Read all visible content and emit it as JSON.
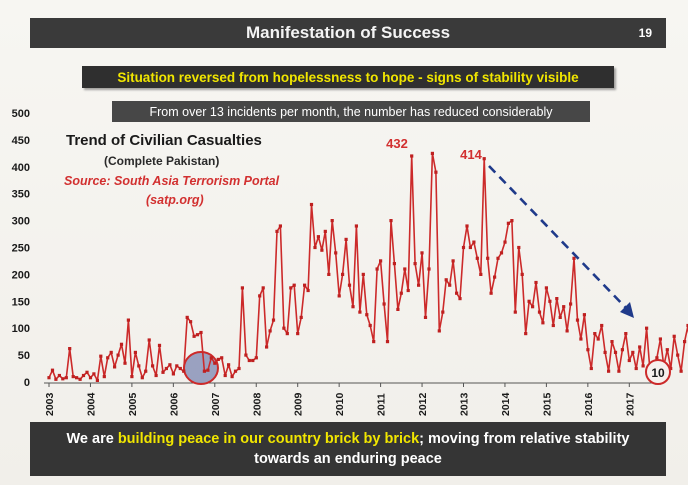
{
  "header": {
    "title": "Manifestation of Success",
    "page_number": "19"
  },
  "banner": {
    "headline": "Situation reversed from hopelessness to hope - signs of stability visible",
    "subheadline": "From over 13 incidents per month, the number has reduced considerably"
  },
  "chart_text": {
    "title": "Trend of Civilian Casualties",
    "subtitle": "(Complete Pakistan)",
    "source_line1": "Source: South Asia Terrorism Portal",
    "source_line2": "(satp.org)"
  },
  "footer": {
    "part1": "We are ",
    "highlight": "building peace in our country brick by brick",
    "part2": "; moving from relative stability",
    "line2": "towards an enduring peace"
  },
  "colors": {
    "line": "#cc2a2a",
    "marker": "#bf2020",
    "arrow": "#1f3a8a",
    "circle_fill": "#8a93b8",
    "circle_stroke": "#cc2a2a"
  },
  "chart_data": {
    "type": "line",
    "title": "Trend of Civilian Casualties",
    "subtitle": "(Complete Pakistan)",
    "xlabel": "",
    "ylabel": "",
    "ylim": [
      0,
      500
    ],
    "yticks": [
      0,
      50,
      100,
      150,
      200,
      250,
      300,
      350,
      400,
      450,
      500
    ],
    "xticks": [
      "2003",
      "2004",
      "2005",
      "2006",
      "2007",
      "2008",
      "2009",
      "2010",
      "2011",
      "2012",
      "2013",
      "2014",
      "2015",
      "2016",
      "2017"
    ],
    "grid": false,
    "x_start": "2003-01",
    "frequency": "monthly",
    "values": [
      8,
      22,
      5,
      12,
      6,
      8,
      62,
      10,
      8,
      5,
      12,
      18,
      8,
      15,
      3,
      48,
      10,
      45,
      55,
      28,
      50,
      70,
      35,
      115,
      10,
      55,
      30,
      8,
      20,
      78,
      30,
      12,
      68,
      18,
      25,
      32,
      15,
      30,
      25,
      20,
      120,
      112,
      85,
      88,
      92,
      20,
      22,
      45,
      35,
      42,
      45,
      12,
      32,
      10,
      20,
      25,
      175,
      50,
      40,
      40,
      45,
      160,
      175,
      65,
      95,
      115,
      280,
      290,
      100,
      90,
      175,
      180,
      90,
      120,
      180,
      170,
      330,
      250,
      270,
      245,
      280,
      200,
      300,
      240,
      160,
      200,
      265,
      180,
      140,
      290,
      130,
      200,
      125,
      105,
      75,
      210,
      225,
      145,
      75,
      300,
      220,
      135,
      165,
      210,
      170,
      420,
      220,
      180,
      240,
      120,
      210,
      425,
      390,
      95,
      130,
      190,
      180,
      225,
      165,
      155,
      250,
      290,
      250,
      260,
      230,
      200,
      415,
      230,
      165,
      195,
      230,
      240,
      260,
      295,
      300,
      130,
      250,
      200,
      90,
      150,
      140,
      185,
      130,
      110,
      175,
      150,
      105,
      155,
      120,
      140,
      95,
      145,
      230,
      115,
      80,
      125,
      60,
      25,
      90,
      80,
      105,
      55,
      20,
      75,
      55,
      20,
      60,
      90,
      40,
      55,
      25,
      65,
      30,
      100,
      20,
      30,
      45,
      80,
      30,
      60,
      25,
      85,
      50,
      20,
      75,
      105,
      35,
      65,
      50,
      20,
      10
    ]
  },
  "annotations": {
    "peak1_label": "432",
    "peak2_label": "414",
    "end_label": "10"
  }
}
